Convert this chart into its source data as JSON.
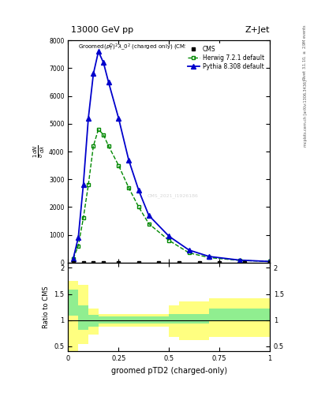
{
  "title_top_left": "13000 GeV pp",
  "title_top_right": "Z+Jet",
  "watermark": "CMS_2021_I1926186",
  "xlabel": "groomed pTD2 (charged-only)",
  "ylabel_ratio": "Ratio to CMS",
  "cms_x": [
    0.025,
    0.075,
    0.125,
    0.175,
    0.25,
    0.35,
    0.45,
    0.55,
    0.65,
    0.75,
    0.875,
    1.0
  ],
  "cms_y": [
    0,
    0,
    0,
    0,
    0,
    0,
    0,
    0,
    0,
    0,
    0,
    0
  ],
  "herwig_x": [
    0.025,
    0.05,
    0.075,
    0.1,
    0.125,
    0.15,
    0.175,
    0.2,
    0.25,
    0.3,
    0.35,
    0.4,
    0.5,
    0.6,
    0.7,
    0.85,
    1.0
  ],
  "herwig_y": [
    150,
    600,
    1600,
    2800,
    4200,
    4800,
    4600,
    4200,
    3500,
    2700,
    2000,
    1400,
    800,
    350,
    180,
    80,
    40
  ],
  "pythia_x": [
    0.025,
    0.05,
    0.075,
    0.1,
    0.125,
    0.15,
    0.175,
    0.2,
    0.25,
    0.3,
    0.35,
    0.4,
    0.5,
    0.6,
    0.7,
    0.85,
    1.0
  ],
  "pythia_y": [
    150,
    900,
    2800,
    5200,
    6800,
    7600,
    7200,
    6500,
    5200,
    3700,
    2600,
    1700,
    950,
    450,
    220,
    90,
    40
  ],
  "ratio_x_edges": [
    0.0,
    0.05,
    0.1,
    0.15,
    0.2,
    0.25,
    0.3,
    0.35,
    0.4,
    0.45,
    0.5,
    0.55,
    0.6,
    0.65,
    0.7,
    0.75,
    0.8,
    0.85,
    0.9,
    0.95,
    1.0
  ],
  "yellow_lo": [
    0.38,
    0.55,
    0.72,
    0.88,
    0.88,
    0.88,
    0.88,
    0.88,
    0.88,
    0.88,
    0.68,
    0.62,
    0.62,
    0.62,
    0.68,
    0.68,
    0.68,
    0.68,
    0.68,
    0.68
  ],
  "yellow_hi": [
    1.75,
    1.68,
    1.22,
    1.12,
    1.12,
    1.12,
    1.12,
    1.12,
    1.12,
    1.12,
    1.28,
    1.35,
    1.35,
    1.35,
    1.42,
    1.42,
    1.42,
    1.42,
    1.42,
    1.42
  ],
  "green_lo": [
    1.08,
    0.82,
    0.88,
    0.93,
    0.93,
    0.93,
    0.93,
    0.93,
    0.93,
    0.93,
    0.93,
    0.93,
    0.93,
    0.93,
    0.98,
    0.98,
    0.98,
    0.98,
    0.98,
    0.98
  ],
  "green_hi": [
    1.58,
    1.28,
    1.1,
    1.07,
    1.07,
    1.07,
    1.07,
    1.07,
    1.07,
    1.07,
    1.12,
    1.12,
    1.12,
    1.12,
    1.22,
    1.22,
    1.22,
    1.22,
    1.22,
    1.22
  ],
  "xlim": [
    0.0,
    1.0
  ],
  "ylim_main": [
    0,
    8000
  ],
  "ylim_ratio": [
    0.4,
    2.1
  ],
  "cms_color": "#000000",
  "herwig_color": "#008800",
  "pythia_color": "#0000cc",
  "green_band": "#90ee90",
  "yellow_band": "#ffff80"
}
